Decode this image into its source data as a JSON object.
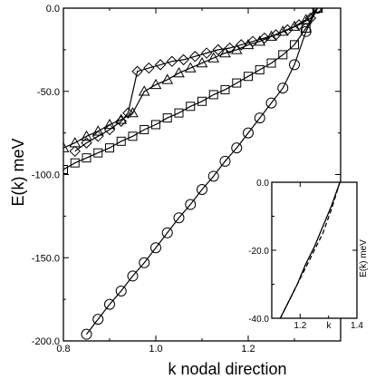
{
  "chart_data": [
    {
      "type": "line",
      "title": "",
      "xlabel": "k nodal direction",
      "ylabel": "E(k) meV",
      "xlim": [
        0.8,
        1.4
      ],
      "ylim": [
        -200,
        0
      ],
      "xticks": [
        "0.8",
        "1.0",
        "1.2"
      ],
      "yticks": [
        "0.0",
        "-50.0",
        "-100.0",
        "-150.0",
        "-200.0"
      ],
      "grid": false,
      "series": [
        {
          "marker": "circle",
          "x": [
            0.85,
            0.875,
            0.9,
            0.925,
            0.95,
            0.975,
            1.0,
            1.025,
            1.05,
            1.075,
            1.1,
            1.125,
            1.15,
            1.175,
            1.2,
            1.225,
            1.25,
            1.275,
            1.3,
            1.325,
            1.35
          ],
          "y": [
            -196,
            -187,
            -178,
            -170,
            -161,
            -153,
            -144,
            -135,
            -126,
            -118,
            -109,
            -101,
            -92,
            -84,
            -75,
            -66,
            -57,
            -48,
            -34,
            -14,
            0
          ]
        },
        {
          "marker": "square",
          "x": [
            0.8,
            0.825,
            0.85,
            0.875,
            0.9,
            0.925,
            0.95,
            0.975,
            1.0,
            1.025,
            1.05,
            1.075,
            1.1,
            1.125,
            1.15,
            1.175,
            1.2,
            1.225,
            1.25,
            1.275,
            1.3,
            1.325,
            1.35
          ],
          "y": [
            -97,
            -93,
            -90,
            -87,
            -84,
            -80,
            -77,
            -73,
            -70,
            -66,
            -63,
            -59,
            -56,
            -52,
            -49,
            -45,
            -41,
            -37,
            -33,
            -28,
            -22,
            -12,
            0
          ]
        },
        {
          "marker": "triangle",
          "x": [
            0.8,
            0.825,
            0.85,
            0.875,
            0.9,
            0.925,
            0.95,
            0.975,
            1.0,
            1.025,
            1.05,
            1.075,
            1.1,
            1.125,
            1.15,
            1.175,
            1.2,
            1.225,
            1.25,
            1.275,
            1.3,
            1.325,
            1.35
          ],
          "y": [
            -84,
            -81,
            -77,
            -74,
            -70,
            -67,
            -63,
            -50,
            -46,
            -43,
            -39,
            -36,
            -33,
            -30,
            -27,
            -25,
            -22,
            -20,
            -17,
            -14,
            -11,
            -7,
            0
          ]
        },
        {
          "marker": "diamond",
          "x": [
            0.825,
            0.85,
            0.875,
            0.9,
            0.925,
            0.94,
            0.96,
            0.985,
            1.01,
            1.035,
            1.06,
            1.085,
            1.11,
            1.135,
            1.16,
            1.185,
            1.21,
            1.235,
            1.26,
            1.285,
            1.31,
            1.335,
            1.35
          ],
          "y": [
            -86,
            -81,
            -77,
            -73,
            -68,
            -63,
            -38,
            -36,
            -34,
            -32,
            -31,
            -29,
            -27,
            -25,
            -24,
            -22,
            -20,
            -18,
            -16,
            -13,
            -10,
            -6,
            0
          ]
        }
      ]
    },
    {
      "type": "line",
      "title": "",
      "xlabel": "k",
      "ylabel": "E(k) meV",
      "xlim": [
        1.1,
        1.4
      ],
      "ylim": [
        -40,
        0
      ],
      "xticks": [
        "1.2",
        "1.4"
      ],
      "yticks": [
        "0.0",
        "-20.0",
        "-40.0"
      ],
      "grid": false,
      "series": [
        {
          "style": "solid",
          "x": [
            1.13,
            1.16,
            1.19,
            1.22,
            1.25,
            1.28,
            1.31,
            1.34
          ],
          "y": [
            -40,
            -35,
            -30,
            -24,
            -19,
            -13,
            -7,
            0
          ]
        },
        {
          "style": "dashed",
          "x": [
            1.13,
            1.16,
            1.19,
            1.22,
            1.25,
            1.28,
            1.31,
            1.34
          ],
          "y": [
            -40,
            -35,
            -30,
            -25,
            -20,
            -15,
            -8,
            0
          ]
        }
      ]
    }
  ]
}
